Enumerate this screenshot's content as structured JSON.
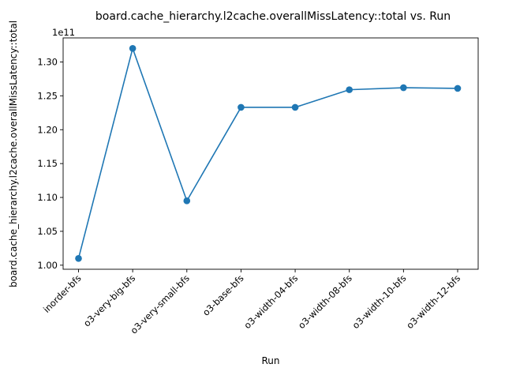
{
  "chart_data": {
    "type": "line",
    "title": "board.cache_hierarchy.l2cache.overallMissLatency::total vs. Run",
    "xlabel": "Run",
    "ylabel": "board.cache_hierarchy.l2cache.overallMissLatency::total",
    "y_offset_text": "1e11",
    "y_scale_factor": 100000000000,
    "categories": [
      "inorder-bfs",
      "o3-very-big-bfs",
      "o3-very-small-bfs",
      "o3-base-bfs",
      "o3-width-04-bfs",
      "o3-width-08-bfs",
      "o3-width-10-bfs",
      "o3-width-12-bfs"
    ],
    "values": [
      101000000000,
      132000000000,
      109500000000,
      123300000000,
      123300000000,
      125900000000,
      126200000000,
      126100000000
    ],
    "y_ticks": [
      1.0,
      1.05,
      1.1,
      1.15,
      1.2,
      1.25,
      1.3
    ],
    "y_tick_labels": [
      "1.00",
      "1.05",
      "1.10",
      "1.15",
      "1.20",
      "1.25",
      "1.30"
    ],
    "ylim": [
      0.994,
      1.3355
    ],
    "grid": false,
    "line_color": "#1f77b4",
    "marker_color": "#1f77b4"
  }
}
